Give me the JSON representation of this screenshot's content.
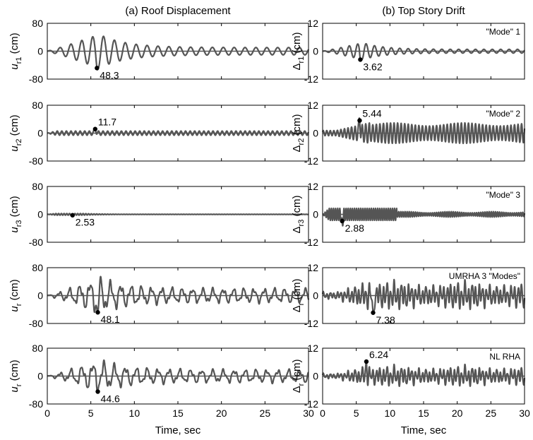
{
  "figure": {
    "left_title": "(a) Roof Displacement",
    "right_title": "(b) Top Story Drift",
    "xlabel": "Time, sec"
  },
  "chart_data": [
    {
      "type": "line",
      "column": "left",
      "row": 0,
      "ylabel_main": "u",
      "ylabel_sub": "r1",
      "ylabel_unit": " (cm)",
      "xlim": [
        0,
        30
      ],
      "ylim": [
        -80,
        80
      ],
      "yticks": [
        "80",
        "0",
        "-80"
      ],
      "xticks": [
        "0",
        "5",
        "10",
        "15",
        "20",
        "25",
        "30"
      ],
      "peak": {
        "x": 5.7,
        "y": -48.3,
        "label": "48.3"
      },
      "annotation": "",
      "signal": {
        "kind": "mode1",
        "amplitude_y": 48,
        "frequency_hz": 0.8,
        "envelope": "burst-decay"
      }
    },
    {
      "type": "line",
      "column": "left",
      "row": 1,
      "ylabel_main": "u",
      "ylabel_sub": "r2",
      "ylabel_unit": " (cm)",
      "xlim": [
        0,
        30
      ],
      "ylim": [
        -80,
        80
      ],
      "yticks": [
        "80",
        "0",
        "-80"
      ],
      "xticks": [
        "0",
        "5",
        "10",
        "15",
        "20",
        "25",
        "30"
      ],
      "peak": {
        "x": 5.5,
        "y": 11.7,
        "label": "11.7"
      },
      "annotation": "",
      "signal": {
        "kind": "mode2",
        "amplitude_y": 6,
        "frequency_hz": 1.9,
        "envelope": "steady"
      }
    },
    {
      "type": "line",
      "column": "left",
      "row": 2,
      "ylabel_main": "u",
      "ylabel_sub": "r3",
      "ylabel_unit": " (cm)",
      "xlim": [
        0,
        30
      ],
      "ylim": [
        -80,
        80
      ],
      "yticks": [
        "80",
        "0",
        "-80"
      ],
      "xticks": [
        "0",
        "5",
        "10",
        "15",
        "20",
        "25",
        "30"
      ],
      "peak": {
        "x": 2.9,
        "y": -2.53,
        "label": "2.53"
      },
      "annotation": "",
      "signal": {
        "kind": "mode3",
        "amplitude_y": 2.5,
        "frequency_hz": 3.2,
        "envelope": "early-burst"
      }
    },
    {
      "type": "line",
      "column": "left",
      "row": 3,
      "ylabel_main": "u",
      "ylabel_sub": "r",
      "ylabel_unit": " (cm)",
      "xlim": [
        0,
        30
      ],
      "ylim": [
        -80,
        80
      ],
      "yticks": [
        "80",
        "0",
        "-80"
      ],
      "xticks": [
        "0",
        "5",
        "10",
        "15",
        "20",
        "25",
        "30"
      ],
      "peak": {
        "x": 5.8,
        "y": -48.1,
        "label": "48.1"
      },
      "annotation": "",
      "signal": {
        "kind": "combined",
        "amplitude_y": 40,
        "frequency_hz": 0.85,
        "envelope": "burst-sustain"
      }
    },
    {
      "type": "line",
      "column": "left",
      "row": 4,
      "ylabel_main": "u",
      "ylabel_sub": "r",
      "ylabel_unit": " (cm)",
      "xlim": [
        0,
        30
      ],
      "ylim": [
        -80,
        80
      ],
      "yticks": [
        "80",
        "0",
        "-80"
      ],
      "xticks": [
        "0",
        "5",
        "10",
        "15",
        "20",
        "25",
        "30"
      ],
      "peak": {
        "x": 5.8,
        "y": -44.6,
        "label": "44.6"
      },
      "annotation": "",
      "signal": {
        "kind": "combined",
        "amplitude_y": 36,
        "frequency_hz": 0.8,
        "envelope": "burst-sustain"
      }
    },
    {
      "type": "line",
      "column": "right",
      "row": 0,
      "ylabel_main": "Δ",
      "ylabel_sub": "r1",
      "ylabel_unit": " (cm)",
      "xlim": [
        0,
        30
      ],
      "ylim": [
        -12,
        12
      ],
      "yticks": [
        "12",
        "0",
        "-12"
      ],
      "xticks": [
        "0",
        "5",
        "10",
        "15",
        "20",
        "25",
        "30"
      ],
      "peak": {
        "x": 5.6,
        "y": -3.62,
        "label": "3.62"
      },
      "annotation": "\"Mode\" 1",
      "signal": {
        "kind": "mode1",
        "amplitude_y": 3.6,
        "frequency_hz": 0.8,
        "envelope": "burst-decay"
      }
    },
    {
      "type": "line",
      "column": "right",
      "row": 1,
      "ylabel_main": "Δ",
      "ylabel_sub": "r2",
      "ylabel_unit": " (cm)",
      "xlim": [
        0,
        30
      ],
      "ylim": [
        -12,
        12
      ],
      "yticks": [
        "12",
        "0",
        "-12"
      ],
      "xticks": [
        "0",
        "5",
        "10",
        "15",
        "20",
        "25",
        "30"
      ],
      "peak": {
        "x": 5.5,
        "y": 5.44,
        "label": "5.44"
      },
      "annotation": "\"Mode\" 2",
      "signal": {
        "kind": "mode2",
        "amplitude_y": 4.4,
        "frequency_hz": 1.9,
        "envelope": "ramp-sustain"
      }
    },
    {
      "type": "line",
      "column": "right",
      "row": 2,
      "ylabel_main": "Δ",
      "ylabel_sub": "r3",
      "ylabel_unit": " (cm)",
      "xlim": [
        0,
        30
      ],
      "ylim": [
        -12,
        12
      ],
      "yticks": [
        "12",
        "0",
        "-12"
      ],
      "xticks": [
        "0",
        "5",
        "10",
        "15",
        "20",
        "25",
        "30"
      ],
      "peak": {
        "x": 2.9,
        "y": -2.88,
        "label": "2.88"
      },
      "annotation": "\"Mode\" 3",
      "signal": {
        "kind": "mode3",
        "amplitude_y": 2.6,
        "frequency_hz": 3.2,
        "envelope": "early-burst-tail"
      }
    },
    {
      "type": "line",
      "column": "right",
      "row": 3,
      "ylabel_main": "Δ",
      "ylabel_sub": "r",
      "ylabel_unit": " (cm)",
      "xlim": [
        0,
        30
      ],
      "ylim": [
        -12,
        12
      ],
      "yticks": [
        "12",
        "0",
        "-12"
      ],
      "xticks": [
        "0",
        "5",
        "10",
        "15",
        "20",
        "25",
        "30"
      ],
      "peak": {
        "x": 7.5,
        "y": -7.38,
        "label": "7.38"
      },
      "annotation": "UMRHA 3 \"Modes\"",
      "signal": {
        "kind": "combined-drift",
        "amplitude_y": 5.2,
        "frequency_hz": 1.9,
        "envelope": "ramp-sustain"
      }
    },
    {
      "type": "line",
      "column": "right",
      "row": 4,
      "ylabel_main": "Δ",
      "ylabel_sub": "r",
      "ylabel_unit": " (cm)",
      "xlim": [
        0,
        30
      ],
      "ylim": [
        -12,
        12
      ],
      "yticks": [
        "12",
        "0",
        "-12"
      ],
      "xticks": [
        "0",
        "5",
        "10",
        "15",
        "20",
        "25",
        "30"
      ],
      "peak": {
        "x": 6.5,
        "y": 6.24,
        "label": "6.24"
      },
      "annotation": "NL  RHA",
      "signal": {
        "kind": "combined-drift",
        "amplitude_y": 3.8,
        "frequency_hz": 1.9,
        "envelope": "ramp-sustain"
      }
    }
  ]
}
